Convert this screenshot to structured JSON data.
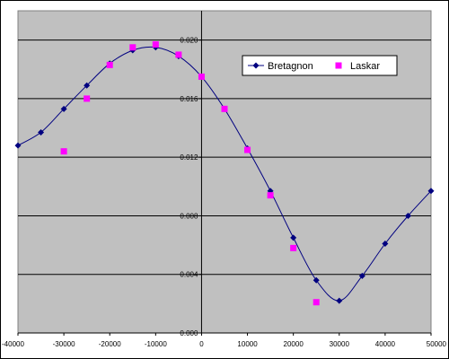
{
  "colors": {
    "plot_background": "#c0c0c0",
    "gridline": "#000000",
    "bretagnon": "#000080",
    "laskar": "#ff00ff"
  },
  "chart_data": {
    "type": "scatter",
    "xlim": [
      -40000,
      50000
    ],
    "ylim": [
      0,
      0.022
    ],
    "x_ticks": [
      -40000,
      -30000,
      -20000,
      -10000,
      0,
      10000,
      20000,
      30000,
      40000,
      50000
    ],
    "x_tick_labels": [
      "-40000",
      "-30000",
      "-20000",
      "-10000",
      "0",
      "10000",
      "20000",
      "30000",
      "40000",
      "50000"
    ],
    "y_ticks": [
      0,
      0.004,
      0.008,
      0.012,
      0.016,
      0.02
    ],
    "y_tick_labels": [
      "0.000",
      "0.004",
      "0.008",
      "0.012",
      "0.016",
      "0.020"
    ],
    "grid": "horizontal",
    "legend_position": "top-right",
    "series": [
      {
        "name": "Bretagnon",
        "style": "line-with-diamond-markers",
        "x": [
          -40000,
          -35000,
          -30000,
          -25000,
          -20000,
          -15000,
          -10000,
          -5000,
          0,
          5000,
          10000,
          15000,
          20000,
          25000,
          30000,
          35000,
          40000,
          45000,
          50000
        ],
        "y": [
          0.0128,
          0.0137,
          0.0153,
          0.0169,
          0.0184,
          0.0193,
          0.0195,
          0.0189,
          0.0175,
          0.0153,
          0.0126,
          0.0097,
          0.0065,
          0.0036,
          0.0022,
          0.0039,
          0.0061,
          0.008,
          0.0097
        ]
      },
      {
        "name": "Laskar",
        "style": "square-markers",
        "x": [
          -30000,
          -25000,
          -20000,
          -15000,
          -10000,
          -5000,
          0,
          5000,
          10000,
          15000,
          20000,
          25000
        ],
        "y": [
          0.0124,
          0.016,
          0.0183,
          0.0195,
          0.0197,
          0.019,
          0.0175,
          0.0153,
          0.0125,
          0.0094,
          0.0058,
          0.0021
        ]
      }
    ]
  }
}
